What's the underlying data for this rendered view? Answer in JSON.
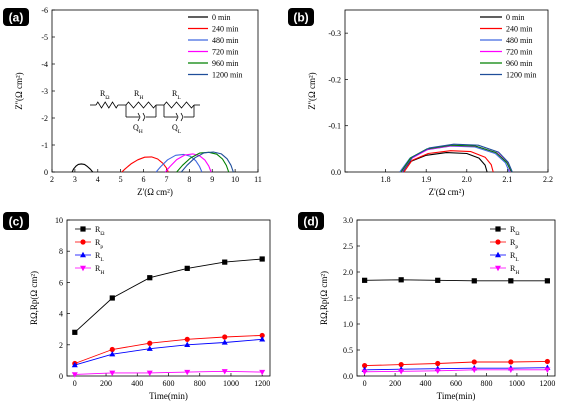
{
  "chart_data": [
    {
      "id": "a",
      "panel_label": "(a)",
      "type": "line",
      "xlabel": "Z'(Ω cm²)",
      "ylabel": "Z''(Ω cm²)",
      "xlim": [
        2,
        11
      ],
      "ylim": [
        0,
        -6
      ],
      "xticks": [
        "2",
        "3",
        "4",
        "5",
        "6",
        "7",
        "8",
        "9",
        "10",
        "11"
      ],
      "yticks": [
        "0",
        "-1",
        "-2",
        "-3",
        "-4",
        "-5",
        "-6"
      ],
      "inset_circuit": [
        "RΩ",
        "RH",
        "QH",
        "RL",
        "QL"
      ],
      "legend_position": "top-right",
      "series": [
        {
          "name": "0 min",
          "color": "#000000",
          "x": [
            2.88,
            2.95,
            3.05,
            3.15,
            3.28,
            3.42,
            3.55,
            3.68,
            3.78
          ],
          "y": [
            0.0,
            -0.12,
            -0.22,
            -0.28,
            -0.3,
            -0.28,
            -0.2,
            -0.1,
            0.0
          ]
        },
        {
          "name": "240 min",
          "color": "#ff0000",
          "x": [
            5.05,
            5.2,
            5.45,
            5.75,
            6.05,
            6.35,
            6.62,
            6.85,
            7.0,
            7.08
          ],
          "y": [
            0.0,
            -0.12,
            -0.3,
            -0.45,
            -0.55,
            -0.56,
            -0.48,
            -0.32,
            -0.15,
            0.0
          ]
        },
        {
          "name": "480 min",
          "color": "#4169e1",
          "x": [
            6.55,
            6.75,
            7.05,
            7.4,
            7.75,
            8.05,
            8.28,
            8.45,
            8.55
          ],
          "y": [
            0.0,
            -0.2,
            -0.45,
            -0.62,
            -0.65,
            -0.58,
            -0.42,
            -0.2,
            0.0
          ]
        },
        {
          "name": "720 min",
          "color": "#ff00ff",
          "x": [
            6.95,
            7.15,
            7.45,
            7.8,
            8.15,
            8.45,
            8.68,
            8.85,
            8.95
          ],
          "y": [
            0.0,
            -0.2,
            -0.46,
            -0.63,
            -0.67,
            -0.6,
            -0.44,
            -0.22,
            0.0
          ]
        },
        {
          "name": "960 min",
          "color": "#008000",
          "x": [
            7.45,
            7.7,
            8.05,
            8.45,
            8.85,
            9.2,
            9.45,
            9.62,
            9.72
          ],
          "y": [
            0.0,
            -0.25,
            -0.52,
            -0.7,
            -0.73,
            -0.66,
            -0.48,
            -0.24,
            0.0
          ]
        },
        {
          "name": "1200 min",
          "color": "#1f4e9a",
          "x": [
            7.65,
            7.9,
            8.25,
            8.65,
            9.05,
            9.4,
            9.65,
            9.82,
            9.92
          ],
          "y": [
            0.0,
            -0.25,
            -0.53,
            -0.71,
            -0.74,
            -0.67,
            -0.49,
            -0.25,
            0.0
          ]
        }
      ]
    },
    {
      "id": "b",
      "panel_label": "(b)",
      "type": "line",
      "xlabel": "Z'(Ω cm²)",
      "ylabel": "Z''(Ω cm²)",
      "xlim": [
        1.7,
        2.2
      ],
      "ylim": [
        0,
        -0.35
      ],
      "xticks": [
        "1.8",
        "1.9",
        "2.0",
        "2.1",
        "2.2"
      ],
      "yticks": [
        "0.0",
        "-0.1",
        "-0.2",
        "-0.3"
      ],
      "legend_position": "top-right",
      "series": [
        {
          "name": "0 min",
          "color": "#000000",
          "x": [
            1.84,
            1.86,
            1.9,
            1.95,
            2.0,
            2.03,
            2.045,
            2.05
          ],
          "y": [
            0.0,
            -0.022,
            -0.036,
            -0.042,
            -0.04,
            -0.03,
            -0.015,
            0.0
          ]
        },
        {
          "name": "240 min",
          "color": "#ff0000",
          "x": [
            1.845,
            1.865,
            1.905,
            1.96,
            2.01,
            2.045,
            2.06,
            2.065
          ],
          "y": [
            0.0,
            -0.025,
            -0.04,
            -0.046,
            -0.044,
            -0.032,
            -0.016,
            0.0
          ]
        },
        {
          "name": "480 min",
          "color": "#4169e1",
          "x": [
            1.835,
            1.86,
            1.9,
            1.96,
            2.02,
            2.07,
            2.095,
            2.105
          ],
          "y": [
            0.0,
            -0.03,
            -0.048,
            -0.056,
            -0.054,
            -0.04,
            -0.02,
            0.0
          ]
        },
        {
          "name": "720 min",
          "color": "#ff00ff",
          "x": [
            1.84,
            1.865,
            1.905,
            1.965,
            2.025,
            2.075,
            2.1,
            2.108
          ],
          "y": [
            0.0,
            -0.03,
            -0.049,
            -0.057,
            -0.055,
            -0.041,
            -0.02,
            0.0
          ]
        },
        {
          "name": "960 min",
          "color": "#008000",
          "x": [
            1.838,
            1.862,
            1.902,
            1.962,
            2.022,
            2.072,
            2.098,
            2.11
          ],
          "y": [
            0.0,
            -0.031,
            -0.05,
            -0.058,
            -0.056,
            -0.042,
            -0.021,
            0.0
          ]
        },
        {
          "name": "1200 min",
          "color": "#1f4e9a",
          "x": [
            1.842,
            1.866,
            1.908,
            1.968,
            2.028,
            2.078,
            2.102,
            2.112
          ],
          "y": [
            0.0,
            -0.032,
            -0.052,
            -0.06,
            -0.058,
            -0.043,
            -0.021,
            0.0
          ]
        }
      ]
    },
    {
      "id": "c",
      "panel_label": "(c)",
      "type": "line",
      "xlabel": "Time(min)",
      "ylabel": "RΩ,Rp(Ω cm²)",
      "xlim": [
        -50,
        1250
      ],
      "ylim": [
        0,
        10
      ],
      "xticks": [
        "0",
        "200",
        "400",
        "600",
        "800",
        "1000",
        "1200"
      ],
      "yticks": [
        "0",
        "2",
        "4",
        "6",
        "8",
        "10"
      ],
      "legend_position": "top-left",
      "x": [
        0,
        240,
        480,
        720,
        960,
        1200
      ],
      "series": [
        {
          "name": "RΩ",
          "color": "#000000",
          "marker": "square",
          "values": [
            2.8,
            5.0,
            6.3,
            6.9,
            7.3,
            7.5
          ]
        },
        {
          "name": "Rp",
          "color": "#ff0000",
          "marker": "circle",
          "values": [
            0.8,
            1.7,
            2.1,
            2.35,
            2.5,
            2.6
          ]
        },
        {
          "name": "RL",
          "color": "#0000ff",
          "marker": "triangle-up",
          "values": [
            0.7,
            1.4,
            1.75,
            2.0,
            2.15,
            2.35
          ]
        },
        {
          "name": "RH",
          "color": "#ff00ff",
          "marker": "triangle-down",
          "values": [
            0.1,
            0.2,
            0.2,
            0.25,
            0.3,
            0.25
          ]
        }
      ]
    },
    {
      "id": "d",
      "panel_label": "(d)",
      "type": "line",
      "xlabel": "Time(min)",
      "ylabel": "RΩ,Rp(Ω cm²)",
      "xlim": [
        -50,
        1250
      ],
      "ylim": [
        0,
        3.0
      ],
      "xticks": [
        "0",
        "200",
        "400",
        "600",
        "800",
        "1000",
        "1200"
      ],
      "yticks": [
        "0.0",
        "0.5",
        "1.0",
        "1.5",
        "2.0",
        "2.5",
        "3.0"
      ],
      "legend_position": "top-right",
      "x": [
        0,
        240,
        480,
        720,
        960,
        1200
      ],
      "series": [
        {
          "name": "RΩ",
          "color": "#000000",
          "marker": "square",
          "values": [
            1.84,
            1.85,
            1.84,
            1.83,
            1.83,
            1.83
          ]
        },
        {
          "name": "Rp",
          "color": "#ff0000",
          "marker": "circle",
          "values": [
            0.2,
            0.22,
            0.24,
            0.27,
            0.27,
            0.28
          ]
        },
        {
          "name": "RL",
          "color": "#0000ff",
          "marker": "triangle-up",
          "values": [
            0.12,
            0.13,
            0.14,
            0.15,
            0.15,
            0.16
          ]
        },
        {
          "name": "RH",
          "color": "#ff00ff",
          "marker": "triangle-down",
          "values": [
            0.08,
            0.09,
            0.1,
            0.12,
            0.12,
            0.12
          ]
        }
      ]
    }
  ]
}
